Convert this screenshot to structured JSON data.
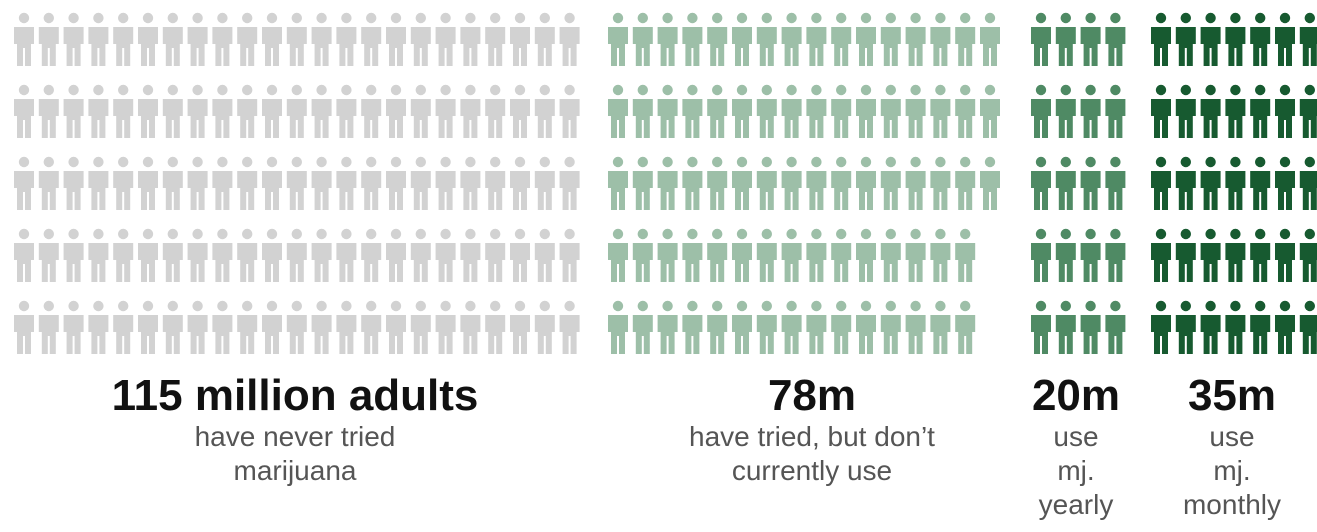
{
  "chart_data": {
    "type": "pictogram",
    "unit": "icon",
    "groups": [
      {
        "value_label": "115 million adults",
        "line1": "have never tried",
        "line2": "marijuana",
        "line3": "",
        "color": "#d2d2d2",
        "icons_per_row": 23,
        "row_counts": [
          23,
          23,
          23,
          23,
          23
        ]
      },
      {
        "value_label": "78m",
        "line1": "have tried, but don’t",
        "line2": "currently use",
        "line3": "",
        "color": "#9dbfa8",
        "icons_per_row": 16,
        "row_counts": [
          16,
          16,
          16,
          15,
          15
        ]
      },
      {
        "value_label": "20m",
        "line1": "use",
        "line2": "mj.",
        "line3": "yearly",
        "color": "#4f8a64",
        "icons_per_row": 4,
        "row_counts": [
          4,
          4,
          4,
          4,
          4
        ]
      },
      {
        "value_label": "35m",
        "line1": "use",
        "line2": "mj.",
        "line3": "monthly",
        "color": "#175a30",
        "icons_per_row": 7,
        "row_counts": [
          7,
          7,
          7,
          7,
          7
        ]
      }
    ]
  }
}
